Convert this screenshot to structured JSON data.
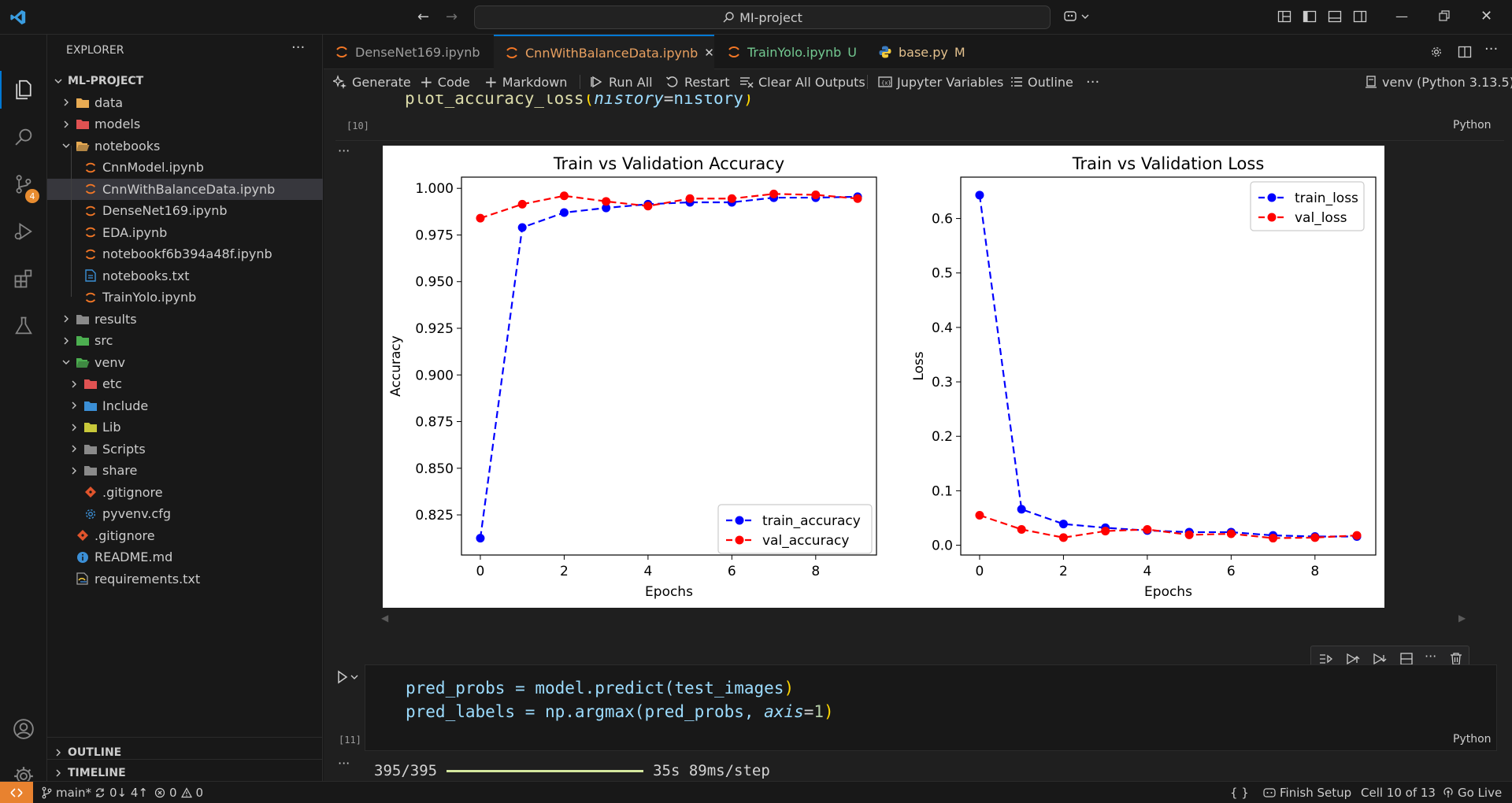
{
  "titlebar": {
    "search_text": "MI-project"
  },
  "explorer": {
    "title": "EXPLORER",
    "root": "ML-PROJECT",
    "items": [
      {
        "label": "data",
        "kind": "folder",
        "color": "#e8ab53"
      },
      {
        "label": "models",
        "kind": "folder",
        "color": "#e05252"
      },
      {
        "label": "notebooks",
        "kind": "folder-open",
        "color": "#e8ab53"
      },
      {
        "label": "CnnModel.ipynb",
        "kind": "notebook"
      },
      {
        "label": "CnnWithBalanceData.ipynb",
        "kind": "notebook"
      },
      {
        "label": "DenseNet169.ipynb",
        "kind": "notebook"
      },
      {
        "label": "EDA.ipynb",
        "kind": "notebook"
      },
      {
        "label": "notebookf6b394a48f.ipynb",
        "kind": "notebook"
      },
      {
        "label": "notebooks.txt",
        "kind": "text"
      },
      {
        "label": "TrainYolo.ipynb",
        "kind": "notebook"
      },
      {
        "label": "results",
        "kind": "folder",
        "color": "#8a8a8a"
      },
      {
        "label": "src",
        "kind": "folder",
        "color": "#4caf50"
      },
      {
        "label": "venv",
        "kind": "folder-open",
        "color": "#4caf50"
      },
      {
        "label": "etc",
        "kind": "folder",
        "color": "#e05252"
      },
      {
        "label": "Include",
        "kind": "folder",
        "color": "#3b8fd6"
      },
      {
        "label": "Lib",
        "kind": "folder",
        "color": "#c8c83a"
      },
      {
        "label": "Scripts",
        "kind": "folder",
        "color": "#8a8a8a"
      },
      {
        "label": "share",
        "kind": "folder",
        "color": "#8a8a8a"
      },
      {
        "label": ".gitignore",
        "kind": "git"
      },
      {
        "label": "pyvenv.cfg",
        "kind": "gear"
      },
      {
        "label": ".gitignore",
        "kind": "git"
      },
      {
        "label": "README.md",
        "kind": "info"
      },
      {
        "label": "requirements.txt",
        "kind": "req"
      }
    ],
    "outline": "OUTLINE",
    "timeline": "TIMELINE"
  },
  "badges": {
    "scm_count": "4"
  },
  "tabs": [
    {
      "label": "DenseNet169.ipynb",
      "status": ""
    },
    {
      "label": "CnnWithBalanceData.ipynb",
      "status": ""
    },
    {
      "label": "TrainYolo.ipynb",
      "status": "U"
    },
    {
      "label": "base.py",
      "status": "M"
    }
  ],
  "toolbar": {
    "generate": "Generate",
    "code": "Code",
    "markdown": "Markdown",
    "run_all": "Run All",
    "restart": "Restart",
    "clear_outputs": "Clear All Outputs",
    "variables": "Jupyter Variables",
    "outline": "Outline",
    "kernel": "venv (Python 3.13.5)"
  },
  "cells": {
    "cell10": {
      "exec_count": "[10]",
      "language": "Python",
      "code_fn": "plot_accuracy_loss",
      "code_arg": "history",
      "code_val": "history"
    },
    "cell11": {
      "exec_count": "[11]",
      "language": "Python",
      "line1_a": "pred_probs = model.predict(",
      "line1_b": "test_images",
      "line1_c": ")",
      "line2_a": "pred_labels = np.argmax(",
      "line2_b": "pred_probs, ",
      "line2_kw": "axis",
      "line2_eq": "=",
      "line2_num": "1",
      "line2_c": ")",
      "progress_count": "395/395",
      "progress_time": "35s 89ms/step",
      "progress": 1.0
    }
  },
  "chart_data": [
    {
      "type": "line",
      "title": "Train vs Validation Accuracy",
      "xlabel": "Epochs",
      "ylabel": "Accuracy",
      "x": [
        0,
        1,
        2,
        3,
        4,
        5,
        6,
        7,
        8,
        9
      ],
      "xticks": [
        "0",
        "2",
        "4",
        "6",
        "8"
      ],
      "yticks": [
        "0.825",
        "0.850",
        "0.875",
        "0.900",
        "0.925",
        "0.950",
        "0.975",
        "1.000"
      ],
      "xlim": [
        -0.45,
        9.45
      ],
      "ylim": [
        0.8035,
        1.006
      ],
      "legend": "lower-right",
      "series": [
        {
          "name": "train_accuracy",
          "color": "#0000ff",
          "values": [
            0.8125,
            0.979,
            0.987,
            0.9895,
            0.9915,
            0.9925,
            0.9925,
            0.995,
            0.995,
            0.9955
          ]
        },
        {
          "name": "val_accuracy",
          "color": "#ff0000",
          "values": [
            0.984,
            0.9915,
            0.996,
            0.993,
            0.9905,
            0.9945,
            0.9945,
            0.997,
            0.9965,
            0.9945
          ]
        }
      ]
    },
    {
      "type": "line",
      "title": "Train vs Validation Loss",
      "xlabel": "Epochs",
      "ylabel": "Loss",
      "x": [
        0,
        1,
        2,
        3,
        4,
        5,
        6,
        7,
        8,
        9
      ],
      "xticks": [
        "0",
        "2",
        "4",
        "6",
        "8"
      ],
      "yticks": [
        "0.0",
        "0.1",
        "0.2",
        "0.3",
        "0.4",
        "0.5",
        "0.6"
      ],
      "xlim": [
        -0.45,
        9.45
      ],
      "ylim": [
        -0.018,
        0.676
      ],
      "legend": "top-right",
      "series": [
        {
          "name": "train_loss",
          "color": "#0000ff",
          "values": [
            0.643,
            0.066,
            0.039,
            0.032,
            0.027,
            0.024,
            0.024,
            0.018,
            0.016,
            0.016
          ]
        },
        {
          "name": "val_loss",
          "color": "#ff0000",
          "values": [
            0.055,
            0.029,
            0.014,
            0.026,
            0.029,
            0.019,
            0.021,
            0.013,
            0.014,
            0.018
          ]
        }
      ]
    }
  ],
  "statusbar": {
    "branch": "main*",
    "sync": "0↓ 4↑",
    "errors": "0",
    "warnings": "0",
    "braces": "{ }",
    "finish_setup": "Finish Setup",
    "cell_pos": "Cell 10 of 13",
    "go_live": "Go Live"
  }
}
